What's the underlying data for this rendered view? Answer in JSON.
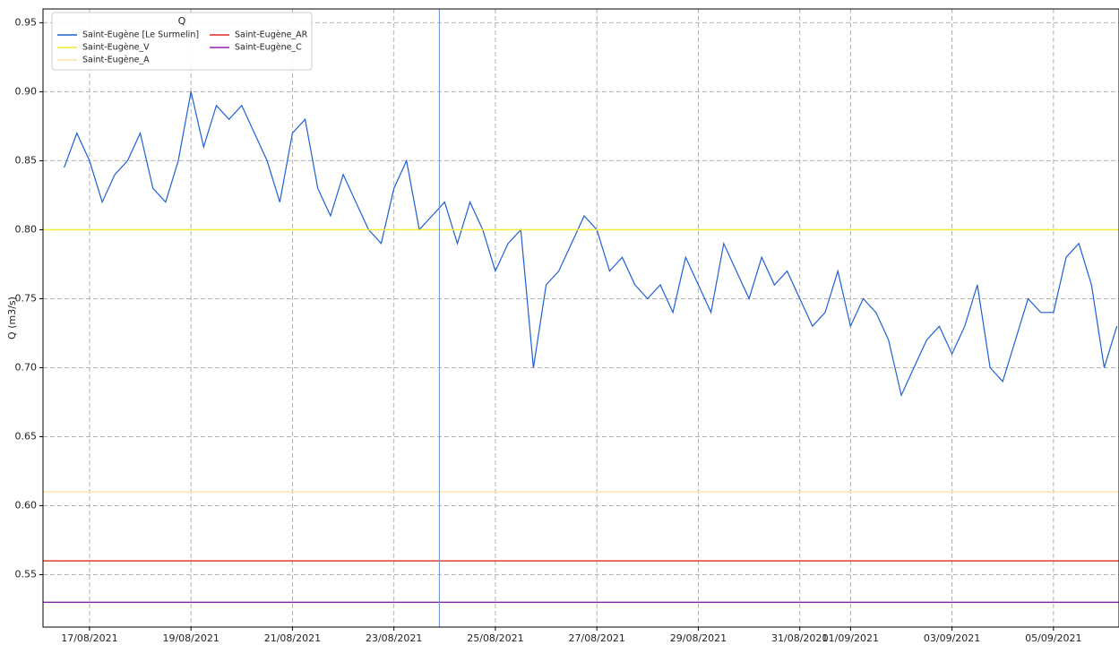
{
  "chart_data": {
    "type": "line",
    "ylabel": "Q (m3/s)",
    "legend_title": "Q",
    "legend": "upper left",
    "grid": true,
    "xlim": [
      "2021-08-16T02:00",
      "2021-09-06T07:00"
    ],
    "ylim": [
      0.512,
      0.96
    ],
    "xticks": [
      {
        "value": "2021-08-17T00:00",
        "label": "17/08/2021"
      },
      {
        "value": "2021-08-19T00:00",
        "label": "19/08/2021"
      },
      {
        "value": "2021-08-21T00:00",
        "label": "21/08/2021"
      },
      {
        "value": "2021-08-23T00:00",
        "label": "23/08/2021"
      },
      {
        "value": "2021-08-25T00:00",
        "label": "25/08/2021"
      },
      {
        "value": "2021-08-27T00:00",
        "label": "27/08/2021"
      },
      {
        "value": "2021-08-29T00:00",
        "label": "29/08/2021"
      },
      {
        "value": "2021-08-31T00:00",
        "label": "31/08/2021"
      },
      {
        "value": "2021-09-01T00:00",
        "label": "01/09/2021"
      },
      {
        "value": "2021-09-03T00:00",
        "label": "03/09/2021"
      },
      {
        "value": "2021-09-05T00:00",
        "label": "05/09/2021"
      }
    ],
    "yticks": [
      0.55,
      {
        "value": 0.6,
        "label": "0.60"
      },
      0.65,
      {
        "value": 0.7,
        "label": "0.70"
      },
      0.75,
      {
        "value": 0.8,
        "label": "0.80"
      },
      0.85,
      {
        "value": 0.9,
        "label": "0.90"
      },
      0.95
    ],
    "vline": {
      "x": "2021-08-23T21:30",
      "color": "#6a8fd0"
    },
    "series": [
      {
        "name": "Saint-Eugène [Le Surmelin]",
        "color": "#1f5fd6",
        "x": [
          "2021-08-16T12:00",
          "2021-08-16T18:00",
          "2021-08-17T00:00",
          "2021-08-17T06:00",
          "2021-08-17T12:00",
          "2021-08-17T18:00",
          "2021-08-18T00:00",
          "2021-08-18T06:00",
          "2021-08-18T12:00",
          "2021-08-18T18:00",
          "2021-08-19T00:00",
          "2021-08-19T06:00",
          "2021-08-19T12:00",
          "2021-08-19T18:00",
          "2021-08-20T00:00",
          "2021-08-20T06:00",
          "2021-08-20T12:00",
          "2021-08-20T18:00",
          "2021-08-21T00:00",
          "2021-08-21T06:00",
          "2021-08-21T12:00",
          "2021-08-21T18:00",
          "2021-08-22T00:00",
          "2021-08-22T06:00",
          "2021-08-22T12:00",
          "2021-08-22T18:00",
          "2021-08-23T00:00",
          "2021-08-23T06:00",
          "2021-08-23T12:00",
          "2021-08-23T18:00",
          "2021-08-24T00:00",
          "2021-08-24T06:00",
          "2021-08-24T12:00",
          "2021-08-24T18:00",
          "2021-08-25T00:00",
          "2021-08-25T06:00",
          "2021-08-25T12:00",
          "2021-08-25T18:00",
          "2021-08-26T00:00",
          "2021-08-26T06:00",
          "2021-08-26T12:00",
          "2021-08-26T18:00",
          "2021-08-27T00:00",
          "2021-08-27T06:00",
          "2021-08-27T12:00",
          "2021-08-27T18:00",
          "2021-08-28T00:00",
          "2021-08-28T06:00",
          "2021-08-28T12:00",
          "2021-08-28T18:00",
          "2021-08-29T00:00",
          "2021-08-29T06:00",
          "2021-08-29T12:00",
          "2021-08-29T18:00",
          "2021-08-30T00:00",
          "2021-08-30T06:00",
          "2021-08-30T12:00",
          "2021-08-30T18:00",
          "2021-08-31T00:00",
          "2021-08-31T06:00",
          "2021-08-31T12:00",
          "2021-08-31T18:00",
          "2021-09-01T00:00",
          "2021-09-01T06:00",
          "2021-09-01T12:00",
          "2021-09-01T18:00",
          "2021-09-02T00:00",
          "2021-09-02T06:00",
          "2021-09-02T12:00",
          "2021-09-02T18:00",
          "2021-09-03T00:00",
          "2021-09-03T06:00",
          "2021-09-03T12:00",
          "2021-09-03T18:00",
          "2021-09-04T00:00",
          "2021-09-04T06:00",
          "2021-09-04T12:00",
          "2021-09-04T18:00",
          "2021-09-05T00:00",
          "2021-09-05T06:00",
          "2021-09-05T12:00",
          "2021-09-05T18:00",
          "2021-09-06T00:00",
          "2021-09-06T06:00"
        ],
        "values": [
          0.845,
          0.87,
          0.85,
          0.82,
          0.84,
          0.85,
          0.87,
          0.83,
          0.82,
          0.85,
          0.9,
          0.86,
          0.89,
          0.88,
          0.89,
          0.87,
          0.85,
          0.82,
          0.87,
          0.88,
          0.83,
          0.81,
          0.84,
          0.82,
          0.8,
          0.79,
          0.83,
          0.85,
          0.8,
          0.81,
          0.82,
          0.79,
          0.82,
          0.8,
          0.77,
          0.79,
          0.8,
          0.7,
          0.76,
          0.77,
          0.79,
          0.81,
          0.8,
          0.77,
          0.78,
          0.76,
          0.75,
          0.76,
          0.74,
          0.78,
          0.76,
          0.74,
          0.79,
          0.77,
          0.75,
          0.78,
          0.76,
          0.77,
          0.75,
          0.73,
          0.74,
          0.77,
          0.73,
          0.75,
          0.74,
          0.72,
          0.68,
          0.7,
          0.72,
          0.73,
          0.71,
          0.73,
          0.76,
          0.7,
          0.69,
          0.72,
          0.75,
          0.74,
          0.74,
          0.78,
          0.79,
          0.76,
          0.7,
          0.73
        ]
      },
      {
        "name": "Saint-Eugène_V",
        "color": "#f2ea2c",
        "x": [
          "2021-08-16T02:00",
          "2021-09-06T07:00"
        ],
        "values": [
          0.8,
          0.8
        ]
      },
      {
        "name": "Saint-Eugène_A",
        "color": "#fbe3a0",
        "x": [
          "2021-08-16T02:00",
          "2021-09-06T07:00"
        ],
        "values": [
          0.61,
          0.61
        ]
      },
      {
        "name": "Saint-Eugène_AR",
        "color": "#e02a22",
        "x": [
          "2021-08-16T02:00",
          "2021-09-06T07:00"
        ],
        "values": [
          0.56,
          0.56
        ]
      },
      {
        "name": "Saint-Eugène_C",
        "color": "#8e24aa",
        "x": [
          "2021-08-16T02:00",
          "2021-09-06T07:00"
        ],
        "values": [
          0.53,
          0.53
        ]
      }
    ]
  }
}
